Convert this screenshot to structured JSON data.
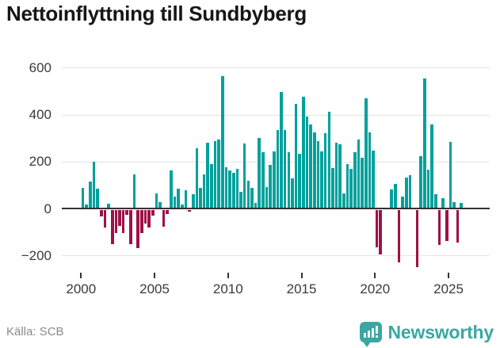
{
  "title": "Nettoinflyttning till Sundbyberg",
  "source": "Källa: SCB",
  "branding": {
    "name": "Newsworthy"
  },
  "colors": {
    "positive": "#00a19c",
    "negative": "#9e1147",
    "grid": "#e4e4e4",
    "zero_line": "#333333",
    "axis_text": "#3a3a3a",
    "title_text": "#161616",
    "source_text": "#8a8a8a",
    "brand": "#3aa7a2"
  },
  "chart_data": {
    "type": "bar",
    "title": "Nettoinflyttning till Sundbyberg",
    "xlabel": "",
    "ylabel": "",
    "frequency": "quarterly",
    "start_year": 2000,
    "x_tick_labels": [
      "2000",
      "2005",
      "2010",
      "2015",
      "2020",
      "2025"
    ],
    "y_tick_labels": [
      "600",
      "400",
      "200",
      "0",
      "−200"
    ],
    "y_ticks": [
      600,
      400,
      200,
      0,
      -200
    ],
    "ylim": [
      -260,
      620
    ],
    "grid": true,
    "legend": "none",
    "values": [
      85,
      15,
      110,
      197,
      80,
      -30,
      -76,
      17,
      -148,
      -98,
      -70,
      -100,
      -22,
      -148,
      141,
      -164,
      -100,
      -60,
      -75,
      -25,
      61,
      25,
      -73,
      -20,
      158,
      47,
      82,
      13,
      74,
      -8,
      58,
      252,
      86,
      142,
      276,
      187,
      283,
      289,
      561,
      172,
      159,
      147,
      164,
      69,
      272,
      114,
      83,
      20,
      298,
      236,
      88,
      183,
      238,
      330,
      494,
      330,
      236,
      124,
      441,
      230,
      471,
      389,
      356,
      322,
      283,
      239,
      317,
      409,
      169,
      276,
      269,
      61,
      187,
      164,
      236,
      291,
      213,
      467,
      322,
      244,
      -160,
      -190,
      0,
      0,
      76,
      100,
      -223,
      48,
      128,
      137,
      0,
      -244,
      220,
      551,
      162,
      356,
      59,
      -149,
      42,
      -132,
      281,
      22,
      -139,
      20
    ]
  }
}
